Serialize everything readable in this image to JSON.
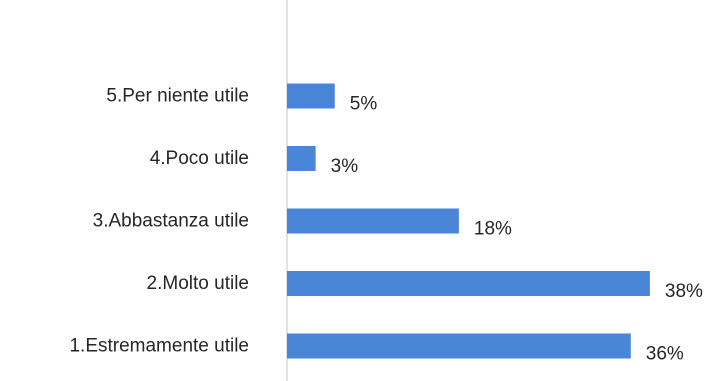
{
  "chart_data": {
    "type": "bar",
    "orientation": "horizontal",
    "categories": [
      "5.Per niente utile",
      "4.Poco utile",
      "3.Abbastanza utile",
      "2.Molto utile",
      "1.Estremamente utile"
    ],
    "values": [
      5,
      3,
      18,
      38,
      36
    ],
    "value_labels": [
      "5%",
      "3%",
      "18%",
      "38%",
      "36%"
    ],
    "title": "",
    "xlabel": "",
    "ylabel": "",
    "xlim": [
      0,
      40
    ],
    "grid": false,
    "legend": "none",
    "bar_color": "#4a86d8",
    "axis_color": "#d9d9d9",
    "text_color": "#262626"
  }
}
